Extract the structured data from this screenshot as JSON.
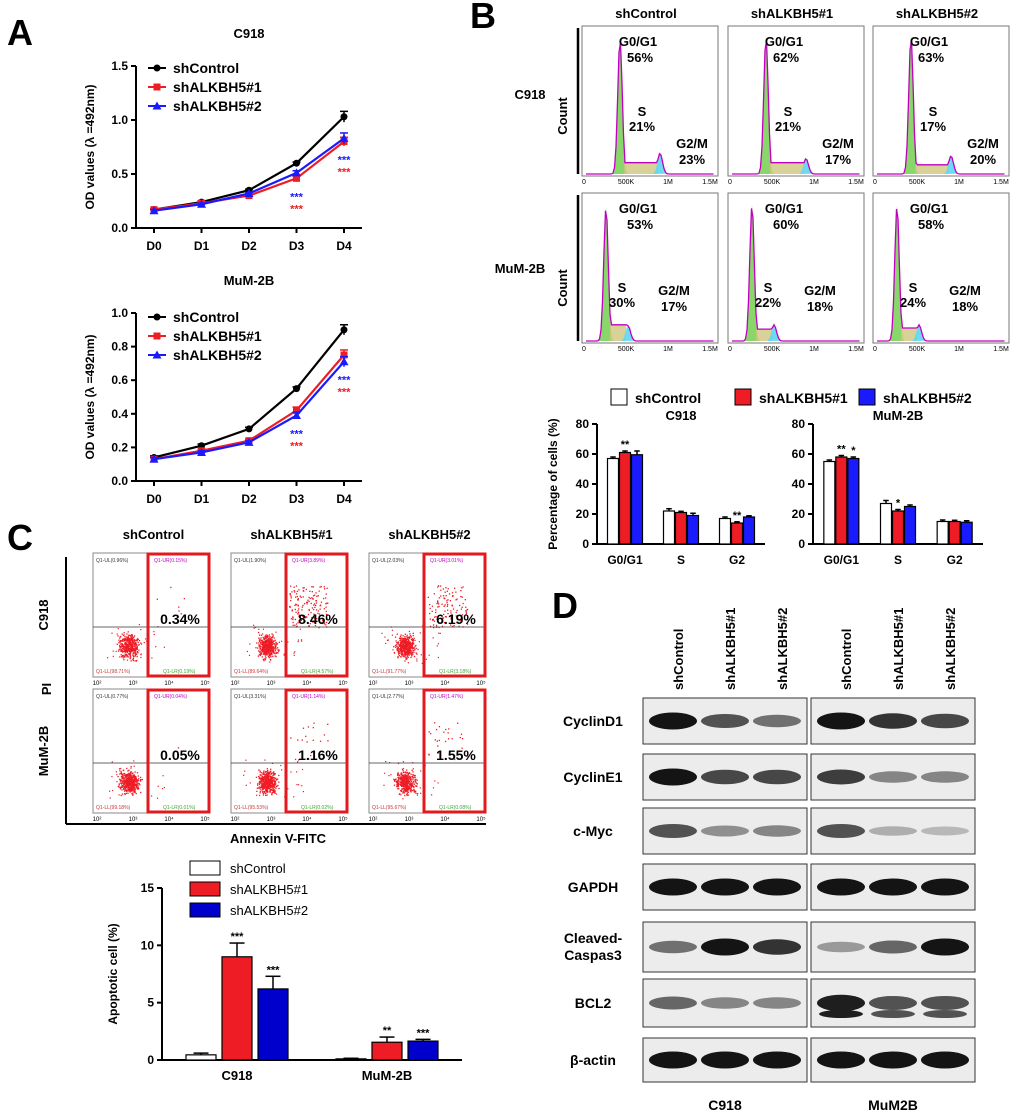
{
  "panel_letters": [
    "A",
    "B",
    "C",
    "D"
  ],
  "groups": [
    "shControl",
    "shALKBH5#1",
    "shALKBH5#2"
  ],
  "colors": {
    "shControl": "#000000",
    "shALKBH5#1": "#ee1c25",
    "shALKBH5#2": "#1a1aff",
    "bar2": "#0000cc",
    "dot": "#ee1c25",
    "gate": "#e3191f",
    "g1fill": "#7cd15a",
    "g2fill": "#5ed6f0",
    "sfill": "#cfc77e",
    "fitline": "#c000c0"
  },
  "stars": {
    "three": "***",
    "two": "**",
    "one": "*"
  },
  "chart_data": [
    {
      "id": "A1",
      "type": "line",
      "title": "C918",
      "categories": [
        "D0",
        "D1",
        "D2",
        "D3",
        "D4"
      ],
      "ylabel": "OD values (λ =492nm)",
      "ylim": [
        0,
        1.5
      ],
      "yticks": [
        "0.0",
        "0.5",
        "1.0",
        "1.5"
      ],
      "series": [
        {
          "name": "shControl",
          "values": [
            0.17,
            0.24,
            0.35,
            0.6,
            1.03
          ],
          "errors": [
            0.01,
            0.01,
            0.01,
            0.01,
            0.05
          ]
        },
        {
          "name": "shALKBH5#1",
          "values": [
            0.17,
            0.23,
            0.3,
            0.46,
            0.8
          ],
          "errors": [
            0.01,
            0.01,
            0.01,
            0.02,
            0.04
          ]
        },
        {
          "name": "shALKBH5#2",
          "values": [
            0.16,
            0.22,
            0.32,
            0.51,
            0.83
          ],
          "errors": [
            0.01,
            0.01,
            0.01,
            0.02,
            0.05
          ]
        }
      ],
      "annotations": [
        {
          "x": "D3",
          "text": "***"
        },
        {
          "x": "D4",
          "text": "***"
        }
      ]
    },
    {
      "id": "A2",
      "type": "line",
      "title": "MuM-2B",
      "categories": [
        "D0",
        "D1",
        "D2",
        "D3",
        "D4"
      ],
      "ylabel": "OD values (λ =492nm)",
      "ylim": [
        0,
        1.0
      ],
      "yticks": [
        "0.0",
        "0.2",
        "0.4",
        "0.6",
        "0.8",
        "1.0"
      ],
      "series": [
        {
          "name": "shControl",
          "values": [
            0.14,
            0.21,
            0.31,
            0.55,
            0.9
          ],
          "errors": [
            0.01,
            0.01,
            0.01,
            0.01,
            0.03
          ]
        },
        {
          "name": "shALKBH5#1",
          "values": [
            0.13,
            0.18,
            0.24,
            0.42,
            0.75
          ],
          "errors": [
            0.01,
            0.01,
            0.01,
            0.02,
            0.03
          ]
        },
        {
          "name": "shALKBH5#2",
          "values": [
            0.13,
            0.17,
            0.23,
            0.39,
            0.71
          ],
          "errors": [
            0.01,
            0.01,
            0.01,
            0.02,
            0.03
          ]
        }
      ],
      "annotations": [
        {
          "x": "D3",
          "text": "***"
        },
        {
          "x": "D4",
          "text": "***"
        }
      ]
    },
    {
      "id": "B-flow",
      "type": "histogram",
      "columns": [
        "shControl",
        "shALKBH5#1",
        "shALKBH5#2"
      ],
      "rows": [
        "C918",
        "MuM-2B"
      ],
      "ylabel": "Count",
      "xticks": [
        "0",
        "500K",
        "1M",
        "1.5M"
      ],
      "phase_labels": [
        "G0/G1",
        "S",
        "G2/M"
      ],
      "values": [
        [
          {
            "g1": "56%",
            "s": "21%",
            "g2": "23%"
          },
          {
            "g1": "62%",
            "s": "21%",
            "g2": "17%"
          },
          {
            "g1": "63%",
            "s": "17%",
            "g2": "20%"
          }
        ],
        [
          {
            "g1": "53%",
            "s": "30%",
            "g2": "17%"
          },
          {
            "g1": "60%",
            "s": "22%",
            "g2": "18%"
          },
          {
            "g1": "58%",
            "s": "24%",
            "g2": "18%"
          }
        ]
      ]
    },
    {
      "id": "B1",
      "type": "bar",
      "title": "C918",
      "categories": [
        "G0/G1",
        "S",
        "G2"
      ],
      "ylabel": "Percentage of cells (%)",
      "ylim": [
        0,
        80
      ],
      "yticks": [
        "0",
        "20",
        "40",
        "60",
        "80"
      ],
      "series": [
        {
          "name": "shControl",
          "values": [
            57,
            22,
            17
          ],
          "errors": [
            1,
            1.5,
            1
          ]
        },
        {
          "name": "shALKBH5#1",
          "values": [
            61,
            21,
            14
          ],
          "errors": [
            1,
            0.8,
            0.8
          ]
        },
        {
          "name": "shALKBH5#2",
          "values": [
            59.5,
            19,
            18
          ],
          "errors": [
            2.5,
            1.5,
            0.8
          ]
        }
      ],
      "annotations": [
        {
          "category": "G0/G1",
          "series": "shALKBH5#1",
          "text": "**"
        },
        {
          "category": "G2",
          "series": "shALKBH5#1",
          "text": "**"
        }
      ]
    },
    {
      "id": "B2",
      "type": "bar",
      "title": "MuM-2B",
      "categories": [
        "G0/G1",
        "S",
        "G2"
      ],
      "ylabel": "",
      "ylim": [
        0,
        80
      ],
      "yticks": [
        "0",
        "20",
        "40",
        "60",
        "80"
      ],
      "series": [
        {
          "name": "shControl",
          "values": [
            55,
            27,
            15
          ],
          "errors": [
            1,
            2,
            1
          ]
        },
        {
          "name": "shALKBH5#1",
          "values": [
            58,
            22,
            15
          ],
          "errors": [
            1,
            1,
            0.8
          ]
        },
        {
          "name": "shALKBH5#2",
          "values": [
            57,
            25,
            14.5
          ],
          "errors": [
            1,
            1,
            1
          ]
        }
      ],
      "annotations": [
        {
          "category": "G0/G1",
          "series": "shALKBH5#1",
          "text": "**"
        },
        {
          "category": "G0/G1",
          "series": "shALKBH5#2",
          "text": "*"
        },
        {
          "category": "S",
          "series": "shALKBH5#1",
          "text": "*"
        }
      ]
    },
    {
      "id": "C-flow",
      "type": "scatter",
      "columns": [
        "shControl",
        "shALKBH5#1",
        "shALKBH5#2"
      ],
      "rows": [
        "C918",
        "MuM-2B"
      ],
      "xlabel": "Annexin V-FITC",
      "ylabel": "PI",
      "ticks": [
        "10²",
        "10³",
        "10⁴",
        "10⁵"
      ],
      "values": [
        [
          "0.34%",
          "8.46%",
          "6.19%"
        ],
        [
          "0.05%",
          "1.16%",
          "1.55%"
        ]
      ],
      "quadrant_labels": [
        [
          {
            "ul": "Q1-UL(0.96%)",
            "ur": "Q1-UR(0.15%)",
            "ll": "Q1-LL(98.71%)",
            "lr": "Q1-LR(0.19%)"
          },
          {
            "ul": "Q1-UL(1.90%)",
            "ur": "Q1-UR(3.89%)",
            "ll": "Q1-LL(89.64%)",
            "lr": "Q1-LR(4.57%)"
          },
          {
            "ul": "Q1-UL(2.03%)",
            "ur": "Q1-UR(3.01%)",
            "ll": "Q1-LL(91.77%)",
            "lr": "Q1-LR(3.18%)"
          }
        ],
        [
          {
            "ul": "Q1-UL(0.77%)",
            "ur": "Q1-UR(0.04%)",
            "ll": "Q1-LL(99.18%)",
            "lr": "Q1-LR(0.01%)"
          },
          {
            "ul": "Q1-UL(3.31%)",
            "ur": "Q1-UR(1.14%)",
            "ll": "Q1-LL(95.53%)",
            "lr": "Q1-LR(0.02%)"
          },
          {
            "ul": "Q1-UL(2.77%)",
            "ur": "Q1-UR(1.47%)",
            "ll": "Q1-LL(95.67%)",
            "lr": "Q1-LR(0.08%)"
          }
        ]
      ]
    },
    {
      "id": "C-bar",
      "type": "bar",
      "categories": [
        "C918",
        "MuM-2B"
      ],
      "ylabel": "Apoptotic cell (%)",
      "ylim": [
        0,
        15
      ],
      "yticks": [
        "0",
        "5",
        "10",
        "15"
      ],
      "series": [
        {
          "name": "shControl",
          "values": [
            0.45,
            0.1
          ],
          "errors": [
            0.15,
            0.05
          ]
        },
        {
          "name": "shALKBH5#1",
          "values": [
            9.0,
            1.55
          ],
          "errors": [
            1.2,
            0.45
          ]
        },
        {
          "name": "shALKBH5#2",
          "values": [
            6.2,
            1.65
          ],
          "errors": [
            1.1,
            0.15
          ]
        }
      ],
      "annotations": [
        {
          "category": "C918",
          "series": "shALKBH5#1",
          "text": "***"
        },
        {
          "category": "C918",
          "series": "shALKBH5#2",
          "text": "***"
        },
        {
          "category": "MuM-2B",
          "series": "shALKBH5#1",
          "text": "**"
        },
        {
          "category": "MuM-2B",
          "series": "shALKBH5#2",
          "text": "***"
        }
      ]
    },
    {
      "id": "D",
      "type": "blot",
      "columns": [
        "shControl",
        "shALKBH5#1",
        "shALKBH5#2"
      ],
      "cell_lines": [
        "C918",
        "MuM2B"
      ],
      "proteins": [
        "CyclinD1",
        "CyclinE1",
        "c-Myc",
        "GAPDH",
        "Cleaved-\nCaspas3",
        "BCL2",
        "β-actin"
      ],
      "relative_intensity": {
        "C918": [
          [
            1.0,
            0.7,
            0.55
          ],
          [
            1.0,
            0.75,
            0.75
          ],
          [
            0.7,
            0.4,
            0.45
          ],
          [
            1.0,
            1.0,
            1.0
          ],
          [
            0.55,
            1.0,
            0.85
          ],
          [
            0.6,
            0.45,
            0.45
          ],
          [
            1.0,
            1.0,
            1.0
          ]
        ],
        "MuM2B": [
          [
            1.0,
            0.85,
            0.75
          ],
          [
            0.8,
            0.45,
            0.45
          ],
          [
            0.7,
            0.25,
            0.2
          ],
          [
            1.0,
            1.0,
            1.0
          ],
          [
            0.35,
            0.6,
            1.0
          ],
          [
            0.95,
            0.7,
            0.7
          ],
          [
            1.0,
            1.0,
            1.0
          ]
        ]
      }
    }
  ]
}
